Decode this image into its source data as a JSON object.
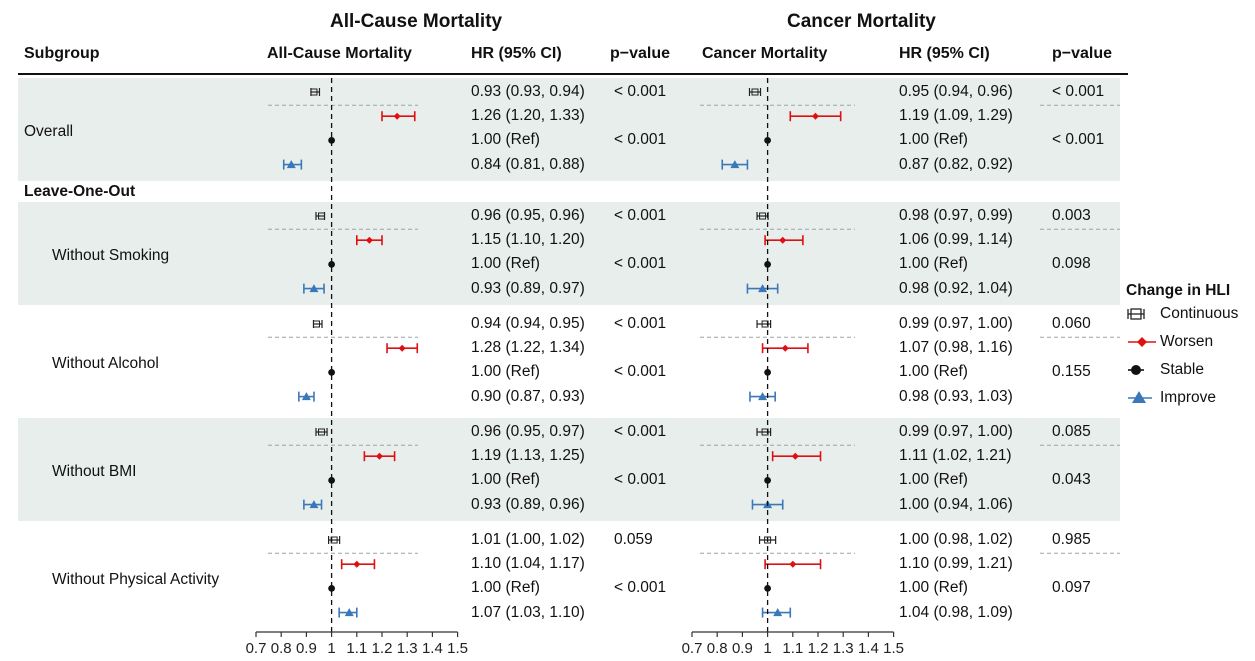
{
  "panel_titles": {
    "left": "All-Cause Mortality",
    "right": "Cancer Mortality"
  },
  "columns": {
    "subgroup": "Subgroup",
    "left_plot": "All-Cause Mortality",
    "left_hr": "HR (95% CI)",
    "left_p": "p−value",
    "right_plot": "Cancer Mortality",
    "right_hr": "HR (95% CI)",
    "right_p": "p−value"
  },
  "section_label": "Leave-One-Out",
  "legend": {
    "title": "Change in HLI",
    "items": [
      {
        "key": "continuous",
        "label": "Continuous"
      },
      {
        "key": "worsen",
        "label": "Worsen"
      },
      {
        "key": "stable",
        "label": "Stable"
      },
      {
        "key": "improve",
        "label": "Improve"
      }
    ]
  },
  "colors": {
    "continuous": "#222222",
    "worsen": "#e01010",
    "stable": "#111111",
    "improve": "#3a78b8",
    "band": "#e8eeec"
  },
  "chart_data": {
    "type": "forest",
    "xlim": [
      0.7,
      1.5
    ],
    "reference_line": 1,
    "x_ticks": [
      "0.7",
      "0.8",
      "0.9",
      "1",
      "1.1",
      "1.2",
      "1.3",
      "1.4",
      "1.5"
    ],
    "x_tick_values": [
      0.7,
      0.8,
      0.9,
      1,
      1.1,
      1.2,
      1.3,
      1.4,
      1.5
    ],
    "groups": [
      {
        "label": "Overall",
        "indent": false,
        "shaded": true,
        "rows": [
          {
            "cat": "continuous",
            "all": {
              "hr": 0.93,
              "lo": 0.93,
              "hi": 0.94,
              "text": "0.93 (0.93, 0.94)",
              "p": "< 0.001"
            },
            "cancer": {
              "hr": 0.95,
              "lo": 0.94,
              "hi": 0.96,
              "text": "0.95 (0.94, 0.96)",
              "p": "< 0.001"
            }
          },
          {
            "cat": "worsen",
            "all": {
              "hr": 1.26,
              "lo": 1.2,
              "hi": 1.33,
              "text": "1.26 (1.20, 1.33)",
              "p": ""
            },
            "cancer": {
              "hr": 1.19,
              "lo": 1.09,
              "hi": 1.29,
              "text": "1.19 (1.09, 1.29)",
              "p": ""
            }
          },
          {
            "cat": "stable",
            "all": {
              "hr": 1.0,
              "lo": 1.0,
              "hi": 1.0,
              "text": "1.00 (Ref)",
              "p": "< 0.001"
            },
            "cancer": {
              "hr": 1.0,
              "lo": 1.0,
              "hi": 1.0,
              "text": "1.00 (Ref)",
              "p": "< 0.001"
            }
          },
          {
            "cat": "improve",
            "all": {
              "hr": 0.84,
              "lo": 0.81,
              "hi": 0.88,
              "text": "0.84 (0.81, 0.88)",
              "p": ""
            },
            "cancer": {
              "hr": 0.87,
              "lo": 0.82,
              "hi": 0.92,
              "text": "0.87 (0.82, 0.92)",
              "p": ""
            }
          }
        ]
      },
      {
        "label": "Without Smoking",
        "indent": true,
        "shaded": true,
        "rows": [
          {
            "cat": "continuous",
            "all": {
              "hr": 0.96,
              "lo": 0.95,
              "hi": 0.96,
              "text": "0.96 (0.95, 0.96)",
              "p": "< 0.001"
            },
            "cancer": {
              "hr": 0.98,
              "lo": 0.97,
              "hi": 0.99,
              "text": "0.98 (0.97, 0.99)",
              "p": "0.003"
            }
          },
          {
            "cat": "worsen",
            "all": {
              "hr": 1.15,
              "lo": 1.1,
              "hi": 1.2,
              "text": "1.15 (1.10, 1.20)",
              "p": ""
            },
            "cancer": {
              "hr": 1.06,
              "lo": 0.99,
              "hi": 1.14,
              "text": "1.06 (0.99, 1.14)",
              "p": ""
            }
          },
          {
            "cat": "stable",
            "all": {
              "hr": 1.0,
              "lo": 1.0,
              "hi": 1.0,
              "text": "1.00 (Ref)",
              "p": "< 0.001"
            },
            "cancer": {
              "hr": 1.0,
              "lo": 1.0,
              "hi": 1.0,
              "text": "1.00 (Ref)",
              "p": "0.098"
            }
          },
          {
            "cat": "improve",
            "all": {
              "hr": 0.93,
              "lo": 0.89,
              "hi": 0.97,
              "text": "0.93 (0.89, 0.97)",
              "p": ""
            },
            "cancer": {
              "hr": 0.98,
              "lo": 0.92,
              "hi": 1.04,
              "text": "0.98 (0.92, 1.04)",
              "p": ""
            }
          }
        ]
      },
      {
        "label": "Without Alcohol",
        "indent": true,
        "shaded": false,
        "rows": [
          {
            "cat": "continuous",
            "all": {
              "hr": 0.94,
              "lo": 0.94,
              "hi": 0.95,
              "text": "0.94 (0.94, 0.95)",
              "p": "< 0.001"
            },
            "cancer": {
              "hr": 0.99,
              "lo": 0.97,
              "hi": 1.0,
              "text": "0.99 (0.97, 1.00)",
              "p": "0.060"
            }
          },
          {
            "cat": "worsen",
            "all": {
              "hr": 1.28,
              "lo": 1.22,
              "hi": 1.34,
              "text": "1.28 (1.22, 1.34)",
              "p": ""
            },
            "cancer": {
              "hr": 1.07,
              "lo": 0.98,
              "hi": 1.16,
              "text": "1.07 (0.98, 1.16)",
              "p": ""
            }
          },
          {
            "cat": "stable",
            "all": {
              "hr": 1.0,
              "lo": 1.0,
              "hi": 1.0,
              "text": "1.00 (Ref)",
              "p": "< 0.001"
            },
            "cancer": {
              "hr": 1.0,
              "lo": 1.0,
              "hi": 1.0,
              "text": "1.00 (Ref)",
              "p": "0.155"
            }
          },
          {
            "cat": "improve",
            "all": {
              "hr": 0.9,
              "lo": 0.87,
              "hi": 0.93,
              "text": "0.90 (0.87, 0.93)",
              "p": ""
            },
            "cancer": {
              "hr": 0.98,
              "lo": 0.93,
              "hi": 1.03,
              "text": "0.98 (0.93, 1.03)",
              "p": ""
            }
          }
        ]
      },
      {
        "label": "Without BMI",
        "indent": true,
        "shaded": true,
        "rows": [
          {
            "cat": "continuous",
            "all": {
              "hr": 0.96,
              "lo": 0.95,
              "hi": 0.97,
              "text": "0.96 (0.95, 0.97)",
              "p": "< 0.001"
            },
            "cancer": {
              "hr": 0.99,
              "lo": 0.97,
              "hi": 1.0,
              "text": "0.99 (0.97, 1.00)",
              "p": "0.085"
            }
          },
          {
            "cat": "worsen",
            "all": {
              "hr": 1.19,
              "lo": 1.13,
              "hi": 1.25,
              "text": "1.19 (1.13, 1.25)",
              "p": ""
            },
            "cancer": {
              "hr": 1.11,
              "lo": 1.02,
              "hi": 1.21,
              "text": "1.11 (1.02, 1.21)",
              "p": ""
            }
          },
          {
            "cat": "stable",
            "all": {
              "hr": 1.0,
              "lo": 1.0,
              "hi": 1.0,
              "text": "1.00 (Ref)",
              "p": "< 0.001"
            },
            "cancer": {
              "hr": 1.0,
              "lo": 1.0,
              "hi": 1.0,
              "text": "1.00 (Ref)",
              "p": "0.043"
            }
          },
          {
            "cat": "improve",
            "all": {
              "hr": 0.93,
              "lo": 0.89,
              "hi": 0.96,
              "text": "0.93 (0.89, 0.96)",
              "p": ""
            },
            "cancer": {
              "hr": 1.0,
              "lo": 0.94,
              "hi": 1.06,
              "text": "1.00 (0.94, 1.06)",
              "p": ""
            }
          }
        ]
      },
      {
        "label": "Without Physical Activity",
        "indent": true,
        "shaded": false,
        "rows": [
          {
            "cat": "continuous",
            "all": {
              "hr": 1.01,
              "lo": 1.0,
              "hi": 1.02,
              "text": "1.01 (1.00, 1.02)",
              "p": "0.059"
            },
            "cancer": {
              "hr": 1.0,
              "lo": 0.98,
              "hi": 1.02,
              "text": "1.00 (0.98, 1.02)",
              "p": "0.985"
            }
          },
          {
            "cat": "worsen",
            "all": {
              "hr": 1.1,
              "lo": 1.04,
              "hi": 1.17,
              "text": "1.10 (1.04, 1.17)",
              "p": ""
            },
            "cancer": {
              "hr": 1.1,
              "lo": 0.99,
              "hi": 1.21,
              "text": "1.10 (0.99, 1.21)",
              "p": ""
            }
          },
          {
            "cat": "stable",
            "all": {
              "hr": 1.0,
              "lo": 1.0,
              "hi": 1.0,
              "text": "1.00 (Ref)",
              "p": "< 0.001"
            },
            "cancer": {
              "hr": 1.0,
              "lo": 1.0,
              "hi": 1.0,
              "text": "1.00 (Ref)",
              "p": "0.097"
            }
          },
          {
            "cat": "improve",
            "all": {
              "hr": 1.07,
              "lo": 1.03,
              "hi": 1.1,
              "text": "1.07 (1.03, 1.10)",
              "p": ""
            },
            "cancer": {
              "hr": 1.04,
              "lo": 0.98,
              "hi": 1.09,
              "text": "1.04 (0.98, 1.09)",
              "p": ""
            }
          }
        ]
      }
    ]
  }
}
